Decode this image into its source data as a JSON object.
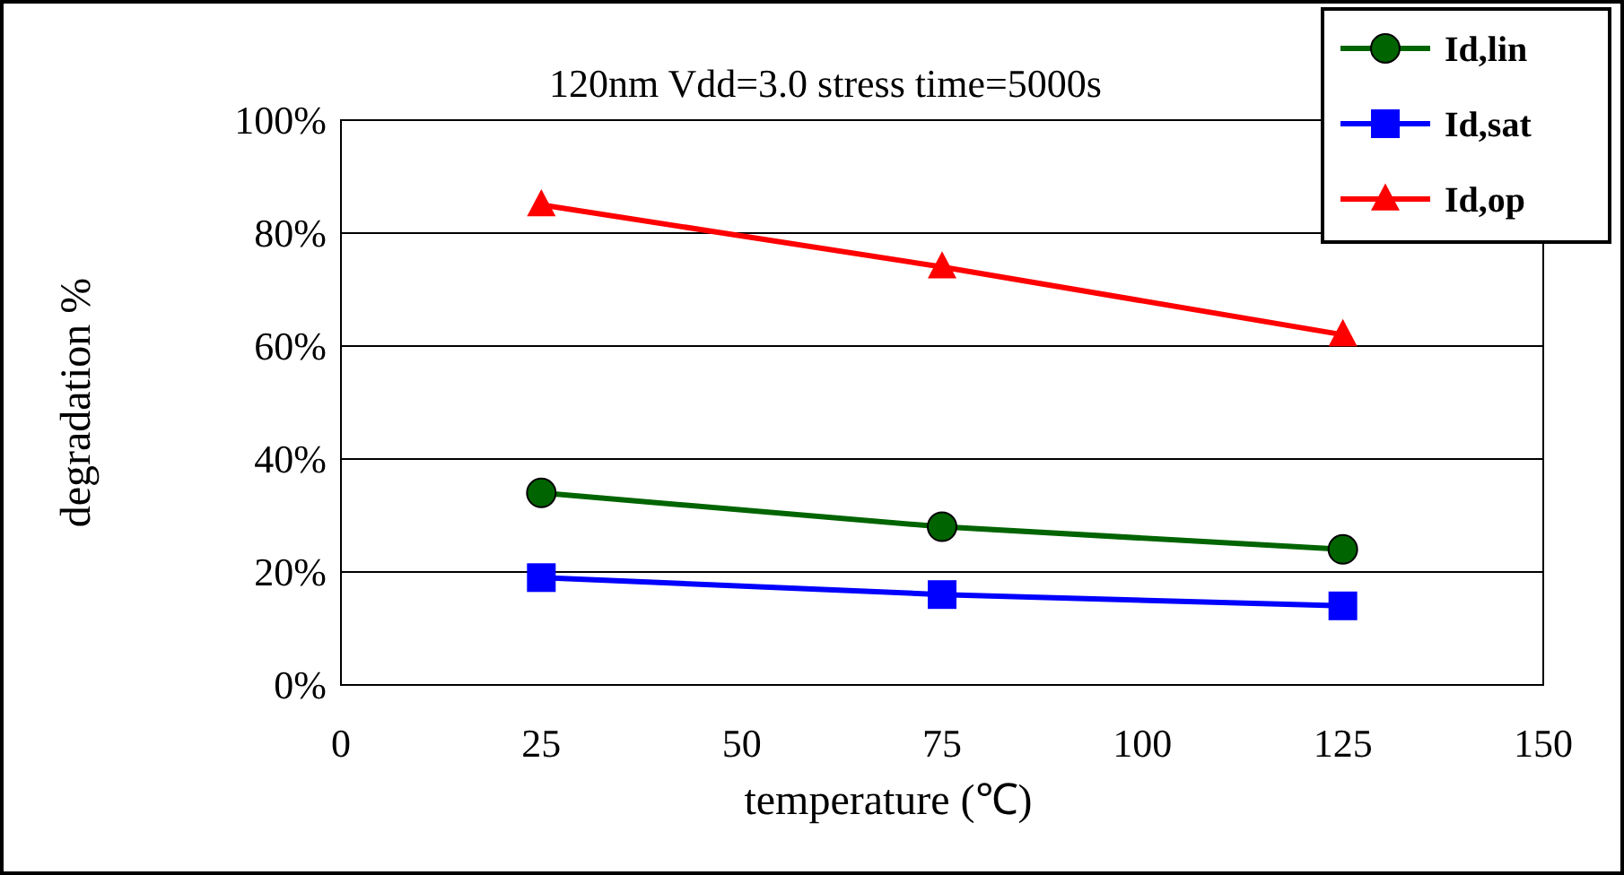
{
  "chart_data": {
    "type": "line",
    "title": "120nm Vdd=3.0 stress time=5000s",
    "xlabel": "temperature (℃)",
    "ylabel": "degradation %",
    "x": [
      25,
      75,
      125
    ],
    "series": [
      {
        "name": "Id,lin",
        "color": "#006400",
        "marker": "circle",
        "values": [
          34,
          28,
          24
        ]
      },
      {
        "name": "Id,sat",
        "color": "#0000ff",
        "marker": "square",
        "values": [
          19,
          16,
          14
        ]
      },
      {
        "name": "Id,op",
        "color": "#ff0000",
        "marker": "triangle",
        "values": [
          85,
          74,
          62
        ]
      }
    ],
    "xlim": [
      0,
      150
    ],
    "xticks": [
      0,
      25,
      50,
      75,
      100,
      125,
      150
    ],
    "ylim": [
      0,
      100
    ],
    "yticks": [
      {
        "value": 0,
        "label": "0%"
      },
      {
        "value": 20,
        "label": "20%"
      },
      {
        "value": 40,
        "label": "40%"
      },
      {
        "value": 60,
        "label": "60%"
      },
      {
        "value": 80,
        "label": "80%"
      },
      {
        "value": 100,
        "label": "100%"
      }
    ],
    "grid": "y",
    "legend": "top right",
    "line_style": "solid"
  }
}
